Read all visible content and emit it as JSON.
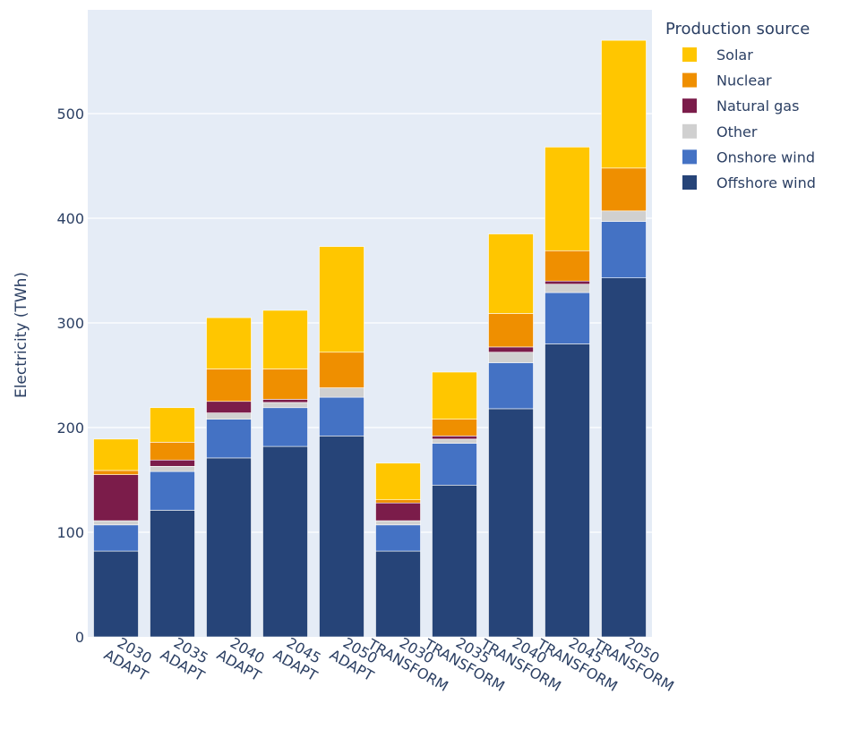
{
  "chart_data": {
    "type": "bar",
    "stacked": true,
    "categories": [
      [
        "2030",
        "ADAPT"
      ],
      [
        "2035",
        "ADAPT"
      ],
      [
        "2040",
        "ADAPT"
      ],
      [
        "2045",
        "ADAPT"
      ],
      [
        "2050",
        "ADAPT"
      ],
      [
        "2030",
        "TRANSFORM"
      ],
      [
        "2035",
        "TRANSFORM"
      ],
      [
        "2040",
        "TRANSFORM"
      ],
      [
        "2045",
        "TRANSFORM"
      ],
      [
        "2050",
        "TRANSFORM"
      ]
    ],
    "ylabel": "Electricity (TWh)",
    "ylim": [
      0,
      595
    ],
    "yticks": [
      0,
      100,
      200,
      300,
      400,
      500
    ],
    "grid": true,
    "legend": {
      "title": "Production source",
      "placement": "right",
      "order": [
        "Solar",
        "Nuclear",
        "Natural gas",
        "Other",
        "Onshore wind",
        "Offshore wind"
      ]
    },
    "colors": {
      "plot_bg": "#e5ecf6",
      "text": "#2b3f63"
    },
    "series": [
      {
        "name": "Offshore wind",
        "color": "#264478",
        "values": [
          82,
          121,
          171,
          182,
          192,
          82,
          145,
          218,
          280,
          343
        ]
      },
      {
        "name": "Onshore wind",
        "color": "#4472c4",
        "values": [
          25,
          37,
          37,
          37,
          37,
          25,
          40,
          44,
          49,
          54
        ]
      },
      {
        "name": "Other",
        "color": "#d0d0d0",
        "values": [
          4,
          5,
          6,
          5,
          9,
          4,
          4,
          10,
          8,
          10
        ]
      },
      {
        "name": "Natural gas",
        "color": "#7b1c4a",
        "values": [
          44,
          6,
          11,
          3,
          0,
          17,
          3,
          5,
          3,
          0
        ]
      },
      {
        "name": "Nuclear",
        "color": "#ef8f00",
        "values": [
          4,
          17,
          31,
          29,
          34,
          3,
          16,
          32,
          29,
          41
        ]
      },
      {
        "name": "Solar",
        "color": "#ffc600",
        "values": [
          30,
          33,
          49,
          56,
          101,
          35,
          45,
          76,
          99,
          122
        ]
      }
    ]
  }
}
